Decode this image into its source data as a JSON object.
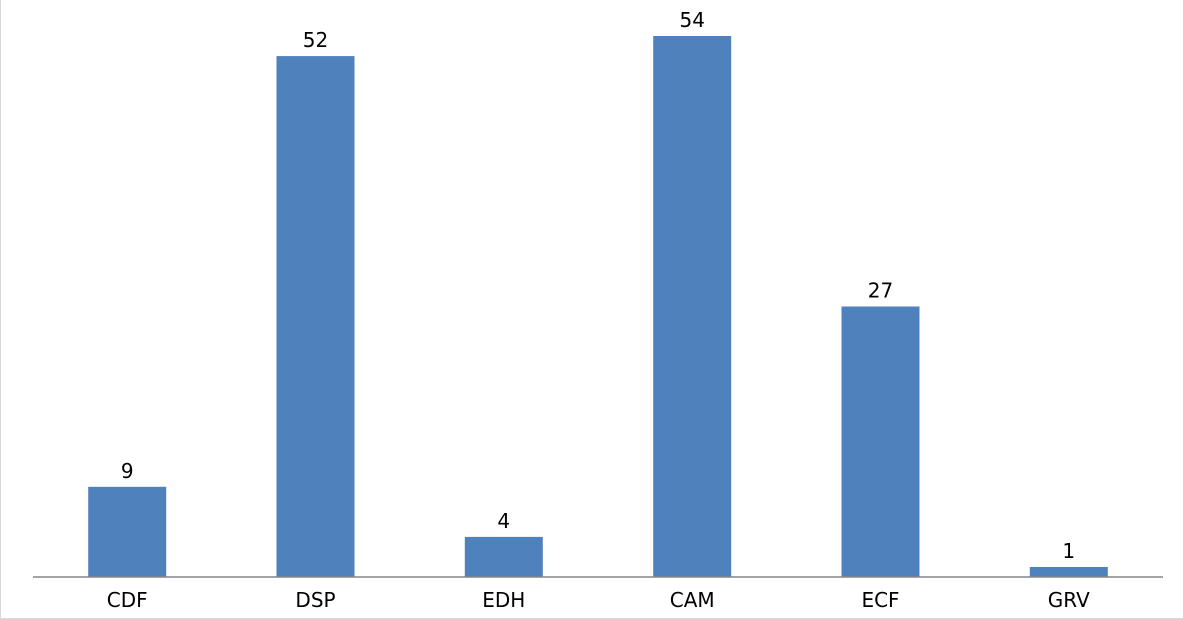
{
  "chart_data": {
    "type": "bar",
    "categories": [
      "CDF",
      "DSP",
      "EDH",
      "CAM",
      "ECF",
      "GRV"
    ],
    "values": [
      9,
      52,
      4,
      54,
      27,
      1
    ],
    "data_labels": [
      "9",
      "52",
      "4",
      "54",
      "27",
      "1"
    ],
    "title": "",
    "xlabel": "",
    "ylabel": "",
    "ylim": [
      0,
      56
    ],
    "grid": false,
    "legend": "none",
    "bar_color": "#4f81bd",
    "axis_color": "#868686"
  }
}
